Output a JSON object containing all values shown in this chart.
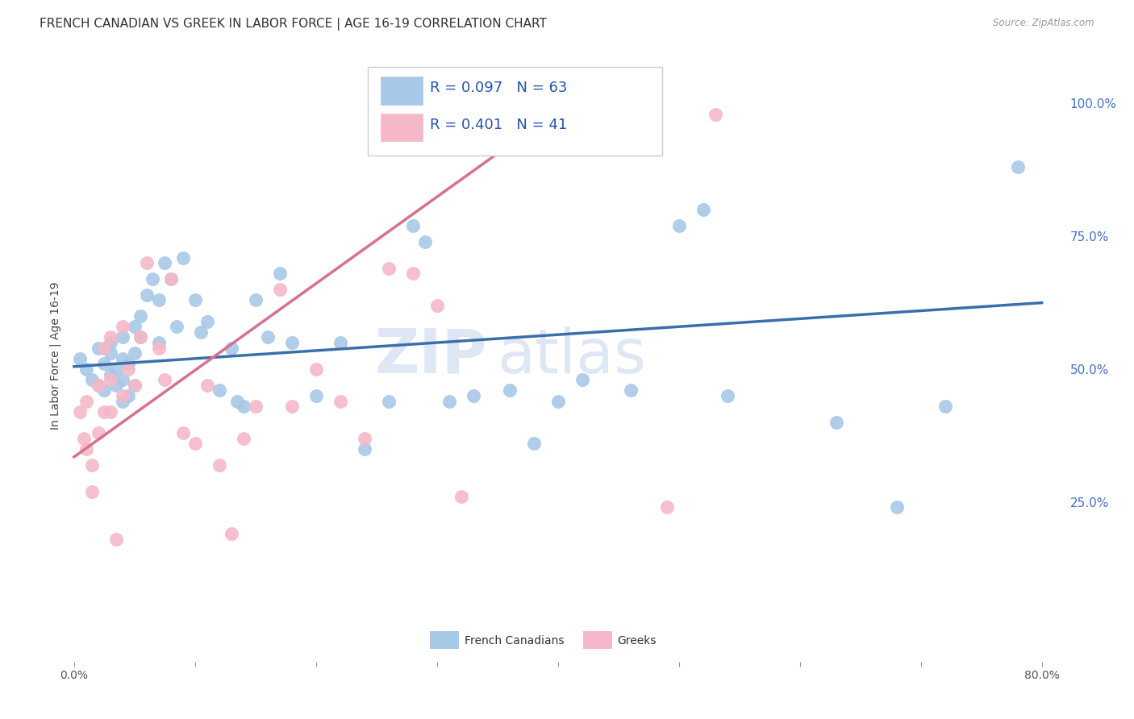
{
  "title": "FRENCH CANADIAN VS GREEK IN LABOR FORCE | AGE 16-19 CORRELATION CHART",
  "source": "Source: ZipAtlas.com",
  "ylabel": "In Labor Force | Age 16-19",
  "x_tick_positions": [
    0.0,
    0.1,
    0.2,
    0.3,
    0.4,
    0.5,
    0.6,
    0.7,
    0.8
  ],
  "x_tick_labels": [
    "0.0%",
    "",
    "",
    "",
    "",
    "",
    "",
    "",
    "80.0%"
  ],
  "y_tick_positions": [
    0.0,
    0.25,
    0.5,
    0.75,
    1.0
  ],
  "y_tick_labels": [
    "",
    "25.0%",
    "50.0%",
    "75.0%",
    "100.0%"
  ],
  "blue_R": 0.097,
  "blue_N": 63,
  "pink_R": 0.401,
  "pink_N": 41,
  "blue_color": "#a8c8e8",
  "pink_color": "#f5b8c8",
  "blue_line_color": "#3a6fad",
  "pink_line_color": "#d87090",
  "legend_blue_label": "French Canadians",
  "legend_pink_label": "Greeks",
  "watermark_zip": "ZIP",
  "watermark_atlas": "atlas",
  "blue_scatter_x": [
    0.005,
    0.01,
    0.015,
    0.02,
    0.02,
    0.025,
    0.025,
    0.03,
    0.03,
    0.03,
    0.035,
    0.035,
    0.04,
    0.04,
    0.04,
    0.04,
    0.045,
    0.045,
    0.05,
    0.05,
    0.05,
    0.055,
    0.055,
    0.06,
    0.065,
    0.07,
    0.07,
    0.075,
    0.08,
    0.085,
    0.09,
    0.1,
    0.105,
    0.11,
    0.12,
    0.13,
    0.135,
    0.14,
    0.15,
    0.16,
    0.17,
    0.18,
    0.2,
    0.22,
    0.24,
    0.26,
    0.28,
    0.29,
    0.31,
    0.33,
    0.36,
    0.38,
    0.4,
    0.42,
    0.44,
    0.46,
    0.5,
    0.52,
    0.54,
    0.63,
    0.68,
    0.72,
    0.78
  ],
  "blue_scatter_y": [
    0.52,
    0.5,
    0.48,
    0.54,
    0.47,
    0.51,
    0.46,
    0.53,
    0.49,
    0.55,
    0.5,
    0.47,
    0.52,
    0.56,
    0.48,
    0.44,
    0.51,
    0.45,
    0.53,
    0.58,
    0.47,
    0.6,
    0.56,
    0.64,
    0.67,
    0.63,
    0.55,
    0.7,
    0.67,
    0.58,
    0.71,
    0.63,
    0.57,
    0.59,
    0.46,
    0.54,
    0.44,
    0.43,
    0.63,
    0.56,
    0.68,
    0.55,
    0.45,
    0.55,
    0.35,
    0.44,
    0.77,
    0.74,
    0.44,
    0.45,
    0.46,
    0.36,
    0.44,
    0.48,
    0.97,
    0.46,
    0.77,
    0.8,
    0.45,
    0.4,
    0.24,
    0.43,
    0.88
  ],
  "pink_scatter_x": [
    0.005,
    0.008,
    0.01,
    0.01,
    0.015,
    0.015,
    0.02,
    0.02,
    0.025,
    0.025,
    0.03,
    0.03,
    0.03,
    0.035,
    0.04,
    0.04,
    0.045,
    0.05,
    0.055,
    0.06,
    0.07,
    0.075,
    0.08,
    0.09,
    0.1,
    0.11,
    0.12,
    0.13,
    0.14,
    0.15,
    0.17,
    0.18,
    0.2,
    0.22,
    0.24,
    0.26,
    0.28,
    0.3,
    0.32,
    0.49,
    0.53
  ],
  "pink_scatter_y": [
    0.42,
    0.37,
    0.44,
    0.35,
    0.32,
    0.27,
    0.47,
    0.38,
    0.42,
    0.54,
    0.56,
    0.48,
    0.42,
    0.18,
    0.58,
    0.45,
    0.5,
    0.47,
    0.56,
    0.7,
    0.54,
    0.48,
    0.67,
    0.38,
    0.36,
    0.47,
    0.32,
    0.19,
    0.37,
    0.43,
    0.65,
    0.43,
    0.5,
    0.44,
    0.37,
    0.69,
    0.68,
    0.62,
    0.26,
    0.24,
    0.98
  ],
  "xlim": [
    -0.005,
    0.82
  ],
  "ylim": [
    -0.05,
    1.1
  ],
  "blue_line_x0": 0.0,
  "blue_line_y0": 0.505,
  "blue_line_x1": 0.8,
  "blue_line_y1": 0.625,
  "pink_line_x0": 0.0,
  "pink_line_y0": 0.335,
  "pink_line_x1": 0.42,
  "pink_line_y1": 1.02,
  "grid_color": "#cccccc",
  "background_color": "#ffffff",
  "title_fontsize": 11,
  "axis_label_fontsize": 10,
  "tick_fontsize": 10,
  "legend_fontsize": 13
}
